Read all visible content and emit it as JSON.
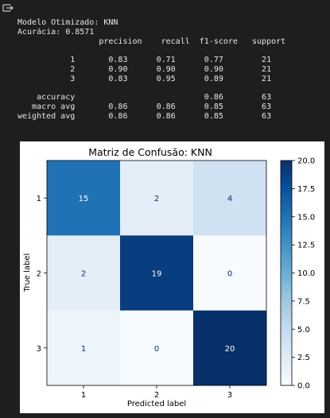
{
  "output_icon": "output-arrow-icon",
  "report": {
    "model_line": "Modelo Otimizado: KNN",
    "accuracy_line": "Acurácia: 0.8571",
    "lines": [
      "                 precision    recall  f1-score   support",
      "",
      "           1       0.83      0.71      0.77        21",
      "           2       0.90      0.90      0.90        21",
      "           3       0.83      0.95      0.89        21",
      "",
      "    accuracy                           0.86        63",
      "   macro avg       0.86      0.86      0.85        63",
      "weighted avg       0.86      0.86      0.85        63"
    ]
  },
  "chart_data": {
    "type": "heatmap",
    "title": "Matriz de Confusão: KNN",
    "xlabel": "Predicted label",
    "ylabel": "True label",
    "x_categories": [
      "1",
      "2",
      "3"
    ],
    "y_categories": [
      "1",
      "2",
      "3"
    ],
    "matrix": [
      [
        15,
        2,
        4
      ],
      [
        2,
        19,
        0
      ],
      [
        1,
        0,
        20
      ]
    ],
    "colormap": "Blues",
    "colorbar": {
      "min": 0,
      "max": 20,
      "ticks": [
        "0.0",
        "2.5",
        "5.0",
        "7.5",
        "10.0",
        "12.5",
        "15.0",
        "17.5",
        "20.0"
      ]
    },
    "colors": {
      "light": "#f7fbff",
      "dark": "#08306b",
      "text_light": "#ffffff",
      "text_dark": "#08306b"
    }
  }
}
